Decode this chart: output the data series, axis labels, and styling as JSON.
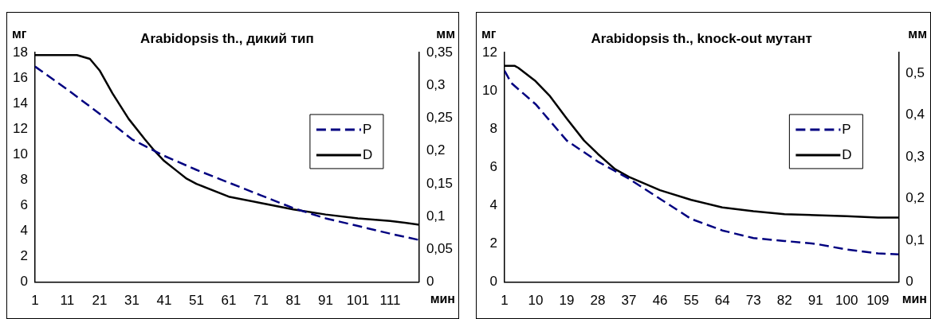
{
  "chart_data": [
    {
      "type": "line",
      "title": "Arabidopsis th., дикий тип",
      "ylabel": "мг",
      "y2label": "мм",
      "xlabel": "мин",
      "xlim": [
        1,
        120
      ],
      "xticks": [
        1,
        11,
        21,
        31,
        41,
        51,
        61,
        71,
        81,
        91,
        101,
        111
      ],
      "ylim": [
        0,
        18
      ],
      "yticks": [
        0,
        2,
        4,
        6,
        8,
        10,
        12,
        14,
        16,
        18
      ],
      "y2lim": [
        0,
        0.35
      ],
      "y2ticks": [
        0,
        {
          "value": 0.05,
          "label": "0,05"
        },
        {
          "value": 0.1,
          "label": "0,1"
        },
        {
          "value": 0.15,
          "label": "0,15"
        },
        {
          "value": 0.2,
          "label": "0,2"
        },
        {
          "value": 0.25,
          "label": "0,25"
        },
        {
          "value": 0.3,
          "label": "0,3"
        },
        {
          "value": 0.35,
          "label": "0,35"
        }
      ],
      "grid": false,
      "legend": "right",
      "marker": "none",
      "series": [
        {
          "name": "P",
          "color": "#000080",
          "line_style": "dashed",
          "x": [
            1,
            11,
            21,
            31,
            41,
            51,
            61,
            71,
            81,
            91,
            101,
            111,
            120
          ],
          "values": [
            16.9,
            15.1,
            13.2,
            11.2,
            9.9,
            8.8,
            7.8,
            6.8,
            5.8,
            5.0,
            4.4,
            3.8,
            3.3
          ]
        },
        {
          "name": "D",
          "color": "#000000",
          "line_style": "solid",
          "x": [
            1,
            10,
            14,
            18,
            21,
            25,
            30,
            35,
            38,
            41,
            45,
            48,
            51,
            61,
            71,
            81,
            91,
            101,
            111,
            120
          ],
          "values": [
            17.8,
            17.8,
            17.8,
            17.5,
            16.6,
            14.8,
            12.8,
            11.2,
            10.3,
            9.5,
            8.7,
            8.1,
            7.7,
            6.7,
            6.2,
            5.7,
            5.3,
            5.0,
            4.8,
            4.5
          ]
        }
      ]
    },
    {
      "type": "line",
      "title": "Arabidopsis th., knock-out мутант",
      "ylabel": "мг",
      "y2label": "мм",
      "xlabel": "мин",
      "xlim": [
        1,
        115
      ],
      "xticks": [
        1,
        10,
        19,
        28,
        37,
        46,
        55,
        64,
        73,
        82,
        91,
        100,
        109
      ],
      "ylim": [
        0,
        12
      ],
      "yticks": [
        0,
        2,
        4,
        6,
        8,
        10,
        12
      ],
      "y2lim": [
        0,
        0.55
      ],
      "y2ticks": [
        0,
        {
          "value": 0.1,
          "label": "0,1"
        },
        {
          "value": 0.2,
          "label": "0,2"
        },
        {
          "value": 0.3,
          "label": "0,3"
        },
        {
          "value": 0.4,
          "label": "0,4"
        },
        {
          "value": 0.5,
          "label": "0,5"
        }
      ],
      "grid": false,
      "legend": "right",
      "marker": "none",
      "series": [
        {
          "name": "P",
          "color": "#000080",
          "line_style": "dashed",
          "x": [
            1,
            3,
            10,
            19,
            28,
            37,
            46,
            55,
            64,
            73,
            82,
            91,
            100,
            109,
            115
          ],
          "values": [
            11.05,
            10.4,
            9.3,
            7.4,
            6.3,
            5.4,
            4.35,
            3.3,
            2.7,
            2.3,
            2.15,
            2.0,
            1.7,
            1.5,
            1.45
          ]
        },
        {
          "name": "D",
          "color": "#000000",
          "line_style": "solid",
          "x": [
            1,
            4,
            5,
            10,
            14,
            19,
            24,
            28,
            33,
            37,
            46,
            55,
            64,
            73,
            82,
            91,
            100,
            109,
            115
          ],
          "values": [
            11.3,
            11.3,
            11.2,
            10.5,
            9.75,
            8.55,
            7.4,
            6.7,
            5.9,
            5.5,
            4.8,
            4.3,
            3.9,
            3.7,
            3.55,
            3.5,
            3.45,
            3.37,
            3.37
          ]
        }
      ]
    }
  ]
}
